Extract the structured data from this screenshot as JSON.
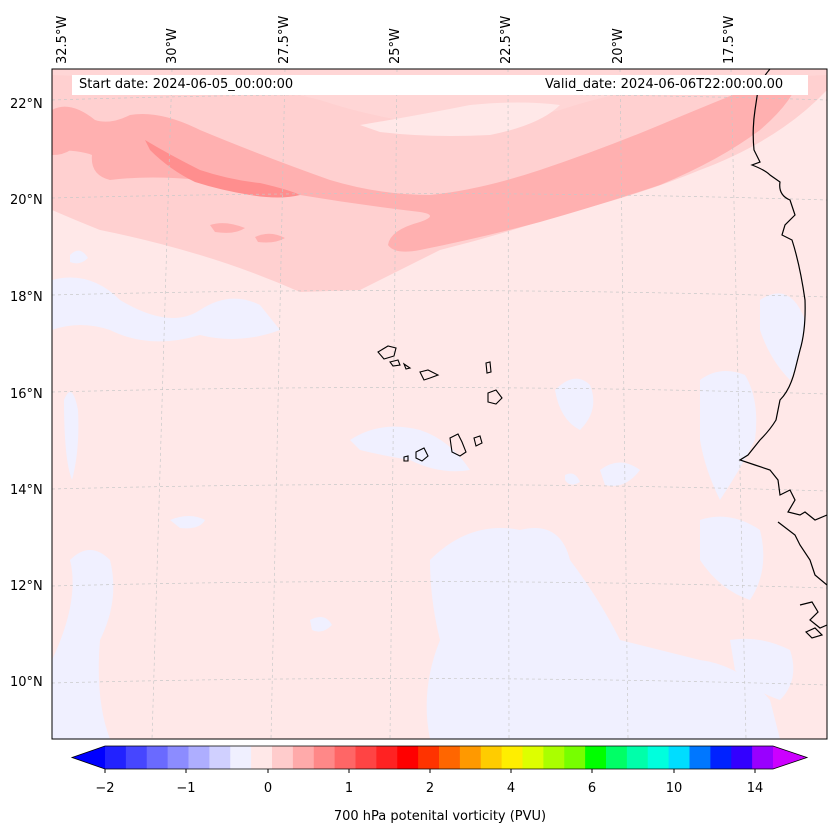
{
  "map": {
    "start_date_text": "Start date: 2024-06-05_00:00:00",
    "valid_date_text": "Valid_date: 2024-06-06T22:00:00.00",
    "lon_labels": [
      "32.5°W",
      "30°W",
      "27.5°W",
      "25°W",
      "22.5°W",
      "20°W",
      "17.5°W"
    ],
    "lat_labels": [
      "22°N",
      "20°N",
      "18°N",
      "16°N",
      "14°N",
      "12°N",
      "10°N"
    ]
  },
  "colorbar": {
    "title": "700 hPa potenital vorticity (PVU)",
    "tick_labels": [
      "−2",
      "−1",
      "0",
      "1",
      "2",
      "4",
      "6",
      "10",
      "14"
    ],
    "colors": [
      "#2222ff",
      "#4646ff",
      "#6a6aff",
      "#8c8cff",
      "#aeaeff",
      "#d0d0ff",
      "#f0f0ff",
      "#ffe8e8",
      "#ffcccc",
      "#ffaaaa",
      "#ff8888",
      "#ff6666",
      "#ff4444",
      "#ff2222",
      "#ff0000",
      "#ff3300",
      "#ff6600",
      "#ff9900",
      "#ffcc00",
      "#ffee00",
      "#ddff00",
      "#aaff00",
      "#77ff00",
      "#00ff00",
      "#00ff66",
      "#00ffaa",
      "#00ffdd",
      "#00ddff",
      "#0077ff",
      "#0022ff",
      "#3300ff",
      "#9900ff"
    ],
    "under_color": "#0000ff",
    "over_color": "#cc00ff"
  },
  "colors": {
    "background_field": "#ffe8e8",
    "negative_field": "#f0f0ff",
    "band_light": "#ffd0d0",
    "band_mid": "#ffb0b0",
    "band_dark": "#ff8e8e",
    "coast": "#000000"
  }
}
